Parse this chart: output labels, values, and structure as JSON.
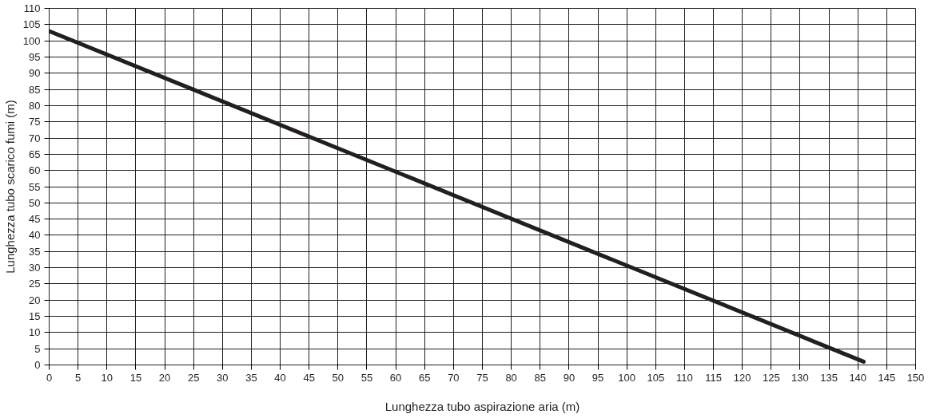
{
  "chart_data": {
    "type": "line",
    "xlabel": "Lunghezza tubo aspirazione aria (m)",
    "ylabel": "Lunghezza tubo scarico fumi (m)",
    "x": [
      0,
      141
    ],
    "series": [
      {
        "color": "#231f20",
        "values": [
          103,
          1
        ]
      }
    ],
    "xlim": [
      0,
      150
    ],
    "ylim": [
      0,
      110
    ],
    "xticks": [
      0,
      5,
      10,
      15,
      20,
      25,
      30,
      35,
      40,
      45,
      50,
      55,
      60,
      65,
      70,
      75,
      80,
      85,
      90,
      95,
      100,
      105,
      110,
      115,
      120,
      125,
      130,
      135,
      140,
      145,
      150
    ],
    "yticks": [
      0,
      5,
      10,
      15,
      20,
      25,
      30,
      35,
      40,
      45,
      50,
      55,
      60,
      65,
      70,
      75,
      80,
      85,
      90,
      95,
      100,
      105,
      110
    ],
    "grid": true,
    "marker": "none",
    "line_style": "solid"
  }
}
